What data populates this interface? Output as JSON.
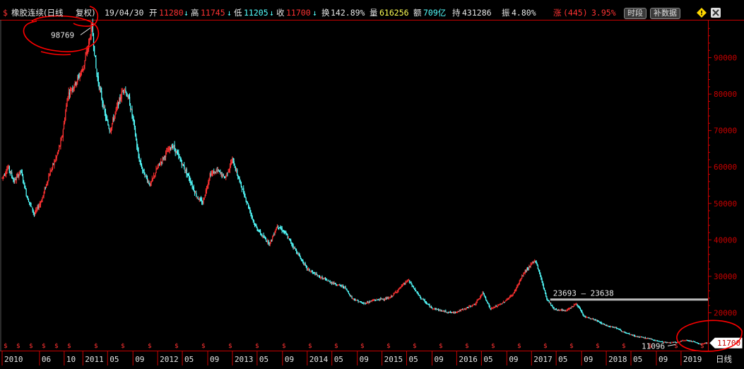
{
  "header": {
    "symbol_icon": "dollar-sign-icon",
    "symbol_glyph": "$",
    "title": "橡胶连续(日线",
    "adjust_label": "复权)",
    "date": "19/04/30",
    "open_label": "开",
    "open_value": "11280",
    "high_label": "高",
    "high_value": "11745",
    "low_label": "低",
    "low_value": "11205",
    "close_label": "收",
    "close_value": "11700",
    "turnover_label": "换",
    "turnover_value": "142.89%",
    "volume_label": "量",
    "volume_value": "616256",
    "amount_label": "额",
    "amount_value": "709亿",
    "oi_label": "持",
    "oi_value": "431286",
    "amplitude_label": "振",
    "amplitude_value": "4.80%",
    "change_label": "涨",
    "change_value": "(445)",
    "change_pct": "3.95%",
    "btn_timeframe": "时段",
    "btn_fill_data": "补数据",
    "warning_icon": "warning-diamond-icon",
    "close_icon": "close-icon"
  },
  "period_tab": "日线",
  "colors": {
    "up": "#ff3232",
    "down": "#54ffff",
    "axis": "#c80000",
    "text": "#e6e6e6",
    "annotation": "#ff0000"
  },
  "chart_data": {
    "type": "candlestick",
    "y_ticks": [
      20000,
      30000,
      40000,
      50000,
      60000,
      70000,
      80000,
      90000
    ],
    "y_tick_labels": [
      "20000",
      "30000",
      "40000",
      "50000",
      "60000",
      "70000",
      "80000",
      "90000"
    ],
    "ylim": [
      10000,
      100000
    ],
    "x_ticks": [
      {
        "label": "2010",
        "t": 2009.92
      },
      {
        "label": "06",
        "t": 2010.42
      },
      {
        "label": "10",
        "t": 2010.75
      },
      {
        "label": "2011",
        "t": 2011.0
      },
      {
        "label": "05",
        "t": 2011.33
      },
      {
        "label": "09",
        "t": 2011.67
      },
      {
        "label": "2012",
        "t": 2012.0
      },
      {
        "label": "05",
        "t": 2012.33
      },
      {
        "label": "09",
        "t": 2012.67
      },
      {
        "label": "2013",
        "t": 2013.0
      },
      {
        "label": "05",
        "t": 2013.33
      },
      {
        "label": "09",
        "t": 2013.67
      },
      {
        "label": "2014",
        "t": 2014.0
      },
      {
        "label": "05",
        "t": 2014.33
      },
      {
        "label": "09",
        "t": 2014.67
      },
      {
        "label": "2015",
        "t": 2015.0
      },
      {
        "label": "05",
        "t": 2015.33
      },
      {
        "label": "09",
        "t": 2015.67
      },
      {
        "label": "2016",
        "t": 2016.0
      },
      {
        "label": "05",
        "t": 2016.33
      },
      {
        "label": "09",
        "t": 2016.67
      },
      {
        "label": "2017",
        "t": 2017.0
      },
      {
        "label": "05",
        "t": 2017.33
      },
      {
        "label": "09",
        "t": 2017.67
      },
      {
        "label": "2018",
        "t": 2018.0
      },
      {
        "label": "05",
        "t": 2018.33
      },
      {
        "label": "09",
        "t": 2018.67
      },
      {
        "label": "2019",
        "t": 2019.0
      }
    ],
    "xlim": [
      2009.92,
      2019.36
    ],
    "price_path": [
      [
        2009.92,
        57000
      ],
      [
        2010.0,
        60000
      ],
      [
        2010.08,
        56000
      ],
      [
        2010.17,
        59000
      ],
      [
        2010.25,
        52000
      ],
      [
        2010.35,
        47000
      ],
      [
        2010.45,
        51000
      ],
      [
        2010.55,
        58000
      ],
      [
        2010.65,
        63000
      ],
      [
        2010.72,
        68000
      ],
      [
        2010.8,
        80000
      ],
      [
        2010.9,
        83000
      ],
      [
        2011.0,
        87000
      ],
      [
        2011.08,
        94000
      ],
      [
        2011.12,
        98769
      ],
      [
        2011.18,
        86000
      ],
      [
        2011.24,
        80000
      ],
      [
        2011.3,
        74000
      ],
      [
        2011.36,
        70000
      ],
      [
        2011.45,
        76000
      ],
      [
        2011.55,
        82000
      ],
      [
        2011.62,
        78000
      ],
      [
        2011.68,
        72000
      ],
      [
        2011.74,
        63000
      ],
      [
        2011.8,
        59000
      ],
      [
        2011.9,
        55000
      ],
      [
        2012.0,
        60000
      ],
      [
        2012.12,
        64000
      ],
      [
        2012.2,
        66000
      ],
      [
        2012.3,
        62000
      ],
      [
        2012.42,
        57000
      ],
      [
        2012.52,
        52000
      ],
      [
        2012.6,
        50000
      ],
      [
        2012.7,
        58000
      ],
      [
        2012.8,
        59000
      ],
      [
        2012.9,
        57000
      ],
      [
        2013.0,
        62000
      ],
      [
        2013.08,
        57000
      ],
      [
        2013.2,
        50000
      ],
      [
        2013.3,
        44000
      ],
      [
        2013.4,
        41000
      ],
      [
        2013.5,
        39000
      ],
      [
        2013.6,
        44000
      ],
      [
        2013.7,
        42000
      ],
      [
        2013.85,
        37000
      ],
      [
        2014.0,
        32000
      ],
      [
        2014.15,
        30000
      ],
      [
        2014.3,
        28500
      ],
      [
        2014.5,
        27000
      ],
      [
        2014.6,
        24000
      ],
      [
        2014.75,
        22500
      ],
      [
        2014.9,
        23500
      ],
      [
        2015.1,
        24000
      ],
      [
        2015.2,
        26000
      ],
      [
        2015.35,
        29000
      ],
      [
        2015.5,
        24500
      ],
      [
        2015.65,
        21500
      ],
      [
        2015.8,
        20500
      ],
      [
        2015.95,
        20000
      ],
      [
        2016.1,
        21000
      ],
      [
        2016.25,
        22500
      ],
      [
        2016.35,
        25500
      ],
      [
        2016.45,
        21000
      ],
      [
        2016.6,
        22500
      ],
      [
        2016.75,
        25000
      ],
      [
        2016.9,
        31000
      ],
      [
        2017.05,
        34500
      ],
      [
        2017.12,
        30000
      ],
      [
        2017.2,
        24000
      ],
      [
        2017.3,
        21000
      ],
      [
        2017.45,
        20500
      ],
      [
        2017.6,
        22500
      ],
      [
        2017.7,
        19000
      ],
      [
        2017.85,
        18000
      ],
      [
        2018.0,
        16500
      ],
      [
        2018.12,
        16000
      ],
      [
        2018.25,
        14500
      ],
      [
        2018.4,
        13500
      ],
      [
        2018.55,
        13000
      ],
      [
        2018.7,
        12200
      ],
      [
        2018.82,
        11800
      ],
      [
        2018.95,
        11900
      ],
      [
        2019.05,
        12500
      ],
      [
        2019.15,
        12200
      ],
      [
        2019.25,
        11400
      ],
      [
        2019.33,
        11700
      ]
    ],
    "annotations": {
      "high_label": "98769",
      "high_value": 98769,
      "high_t": 2011.12,
      "range_label": "23693 — 23638",
      "range_value": 23638,
      "range_t_start": 2017.25,
      "low_label": "11096",
      "low_value": 11096,
      "low_t": 2018.85,
      "last_price_label": "11700",
      "last_price_value": 11700
    }
  }
}
